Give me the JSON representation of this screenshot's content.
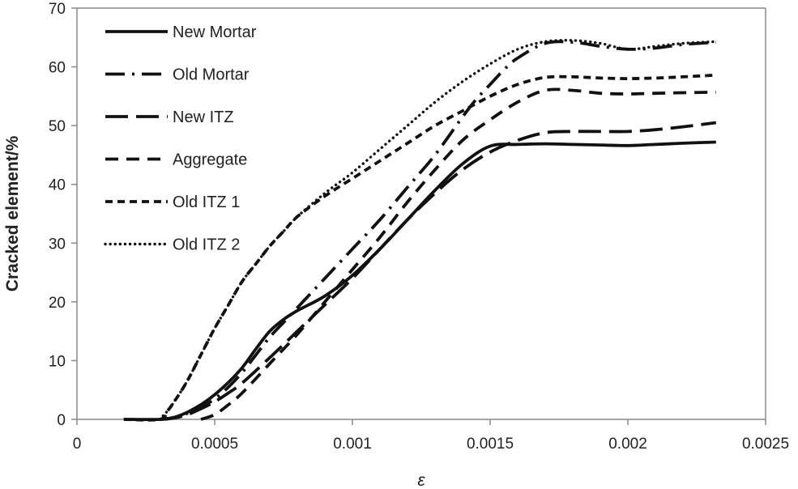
{
  "chart_data": {
    "type": "line",
    "title": "",
    "xlabel": "ε",
    "ylabel": "Cracked element/%",
    "xlim": [
      0,
      0.0025
    ],
    "ylim": [
      0,
      70
    ],
    "xticks": [
      0,
      0.0005,
      0.001,
      0.0015,
      0.002,
      0.0025
    ],
    "xtick_labels": [
      "0",
      "0.0005",
      "0.001",
      "0.0015",
      "0.002",
      "0.0025"
    ],
    "yticks": [
      0,
      10,
      20,
      30,
      40,
      50,
      60,
      70
    ],
    "ytick_labels": [
      "0",
      "10",
      "20",
      "30",
      "40",
      "50",
      "60",
      "70"
    ],
    "grid": false,
    "legend_position": "top-left",
    "series": [
      {
        "name": "New Mortar",
        "style": "solid",
        "x": [
          0.00017,
          0.0003,
          0.00035,
          0.0004,
          0.00045,
          0.0005,
          0.00055,
          0.0006,
          0.00065,
          0.0007,
          0.00075,
          0.0008,
          0.0009,
          0.001,
          0.0011,
          0.0012,
          0.0013,
          0.0014,
          0.0015,
          0.0016,
          0.0017,
          0.0018,
          0.0019,
          0.002,
          0.0021,
          0.0022,
          0.00232
        ],
        "y": [
          0,
          0,
          0.3,
          1.2,
          2.5,
          4.2,
          6.3,
          8.8,
          12,
          15,
          17,
          18.5,
          21,
          24.5,
          29,
          34,
          39,
          43.5,
          46.5,
          46.8,
          46.9,
          46.8,
          46.7,
          46.6,
          46.8,
          47,
          47.2
        ]
      },
      {
        "name": "Old Mortar",
        "style": "dash-dot",
        "x": [
          0.0003,
          0.00035,
          0.0004,
          0.00045,
          0.0005,
          0.00055,
          0.0006,
          0.00065,
          0.0007,
          0.00075,
          0.0008,
          0.0009,
          0.001,
          0.0011,
          0.0012,
          0.0013,
          0.0014,
          0.00145,
          0.0015,
          0.00155,
          0.0016,
          0.0017,
          0.0018,
          0.0019,
          0.002,
          0.0021,
          0.0022,
          0.00232
        ],
        "y": [
          0,
          0.3,
          1.0,
          2.0,
          3.5,
          5.5,
          8.0,
          11.0,
          14.0,
          16.5,
          19.0,
          24.0,
          29.0,
          34.0,
          39.5,
          45.0,
          51.5,
          54.5,
          57.0,
          59.5,
          61.5,
          64.0,
          64.2,
          63.5,
          63.0,
          63.2,
          63.8,
          64.2
        ]
      },
      {
        "name": "New ITZ",
        "style": "long-dash",
        "x": [
          0.0003,
          0.00035,
          0.0004,
          0.00045,
          0.0005,
          0.00055,
          0.0006,
          0.0007,
          0.0008,
          0.0009,
          0.001,
          0.0011,
          0.0012,
          0.0013,
          0.0014,
          0.0015,
          0.0016,
          0.0017,
          0.0018,
          0.0019,
          0.002,
          0.0021,
          0.0022,
          0.00232
        ],
        "y": [
          0,
          0.2,
          0.8,
          1.8,
          3.0,
          4.5,
          6.2,
          10.5,
          15.0,
          19.5,
          24.0,
          29.0,
          34.0,
          38.5,
          42.5,
          45.5,
          47.5,
          48.8,
          49.0,
          49.0,
          49.0,
          49.3,
          49.8,
          50.5
        ]
      },
      {
        "name": "Aggregate",
        "style": "medium-dash",
        "x": [
          0.00045,
          0.0005,
          0.00055,
          0.0006,
          0.0007,
          0.0008,
          0.0009,
          0.001,
          0.0011,
          0.0012,
          0.0013,
          0.0014,
          0.0015,
          0.0016,
          0.0017,
          0.0018,
          0.0019,
          0.002,
          0.0021,
          0.0022,
          0.00232
        ],
        "y": [
          0,
          0.8,
          2.5,
          4.5,
          9.5,
          14.5,
          20.0,
          25.5,
          31.0,
          37.0,
          42.5,
          47.5,
          51.0,
          54.0,
          56.0,
          56.0,
          55.5,
          55.4,
          55.5,
          55.6,
          55.7
        ]
      },
      {
        "name": "Old ITZ 1",
        "style": "short-dash",
        "x": [
          0.00017,
          0.0003,
          0.00033,
          0.00036,
          0.0004,
          0.00045,
          0.0005,
          0.00055,
          0.0006,
          0.00065,
          0.0007,
          0.00075,
          0.0008,
          0.0009,
          0.001,
          0.0011,
          0.0012,
          0.0013,
          0.0014,
          0.0015,
          0.0016,
          0.0017,
          0.0018,
          0.0019,
          0.002,
          0.0021,
          0.0022,
          0.00232
        ],
        "y": [
          0,
          0,
          1.5,
          3.5,
          6.5,
          11.0,
          15.5,
          19.5,
          23.5,
          26.5,
          29.5,
          32.0,
          34.5,
          38.0,
          41.0,
          44.0,
          47.0,
          50.0,
          52.5,
          55.0,
          57.0,
          58.2,
          58.3,
          58.1,
          58.0,
          58.1,
          58.3,
          58.6
        ]
      },
      {
        "name": "Old ITZ 2",
        "style": "dotted",
        "x": [
          0.0003,
          0.00033,
          0.00036,
          0.0004,
          0.00045,
          0.0005,
          0.00055,
          0.0006,
          0.00065,
          0.0007,
          0.00075,
          0.0008,
          0.0009,
          0.001,
          0.0011,
          0.0012,
          0.0013,
          0.0014,
          0.0015,
          0.0016,
          0.0017,
          0.0018,
          0.0019,
          0.002,
          0.0021,
          0.0022,
          0.00232
        ],
        "y": [
          0,
          1.5,
          3.5,
          6.5,
          11.0,
          15.5,
          19.5,
          23.5,
          26.5,
          29.5,
          32.0,
          34.5,
          38.5,
          42.0,
          46.0,
          50.0,
          54.0,
          57.5,
          60.5,
          63.0,
          64.3,
          64.5,
          64.0,
          63.0,
          63.5,
          64.0,
          64.3
        ]
      }
    ]
  }
}
